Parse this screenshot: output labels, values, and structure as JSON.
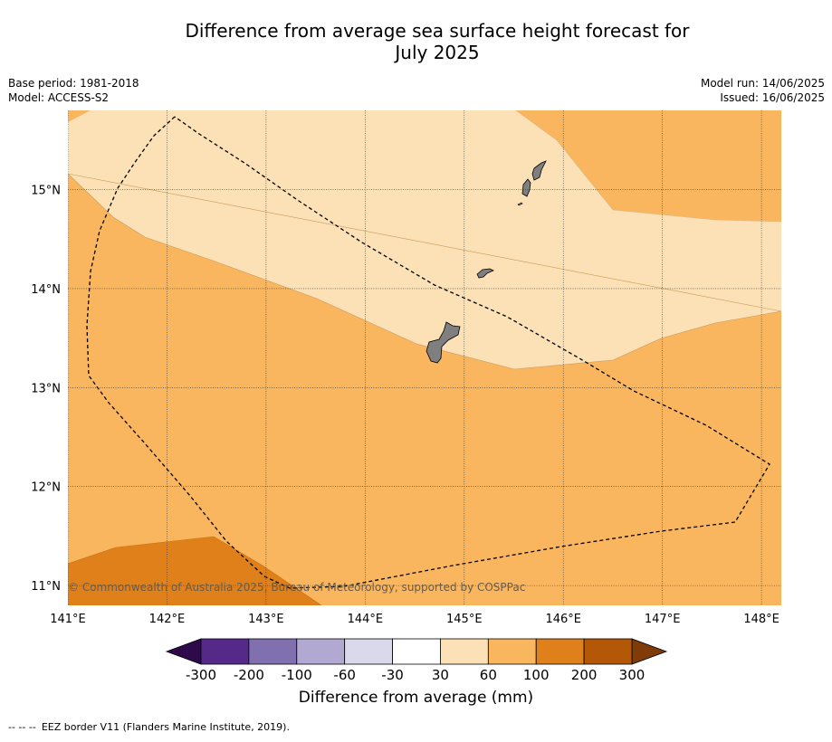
{
  "title_line1": "Difference from average sea surface height forecast for",
  "title_line2": "July 2025",
  "meta_left": {
    "base_period": "Base period: 1981-2018",
    "model": "Model: ACCESS-S2"
  },
  "meta_right": {
    "model_run": "Model run: 14/06/2025",
    "issued": "Issued: 16/06/2025"
  },
  "map": {
    "lon_labels": [
      "141°E",
      "142°E",
      "143°E",
      "144°E",
      "145°E",
      "146°E",
      "147°E",
      "148°E"
    ],
    "lat_labels": [
      "15°N",
      "14°N",
      "13°N",
      "12°N",
      "11°N"
    ],
    "lon_range": [
      141.0,
      148.2
    ],
    "lat_range": [
      10.8,
      15.8
    ],
    "copyright": "© Commonwealth of Australia 2025, Bureau of Meteorology, supported by COSPPac",
    "colors": {
      "c30_60": "#fce0b6",
      "c60_100": "#f9b65f",
      "c100_200": "#e0801a",
      "land": "#7f7f7f"
    }
  },
  "colorbar": {
    "ticks": [
      "-300",
      "-200",
      "-100",
      "-60",
      "-30",
      "30",
      "60",
      "100",
      "200",
      "300"
    ],
    "colors": [
      "#552989",
      "#8170b0",
      "#b1a9d2",
      "#d9d9eb",
      "#ffffff",
      "#fce0b6",
      "#f9b65f",
      "#e0801a",
      "#b25806"
    ],
    "under_color": "#2e0a4a",
    "over_color": "#7f3b08",
    "label": "Difference from average (mm)"
  },
  "footnote": {
    "dash": "-- -- --",
    "text": "EEZ border V11 (Flanders Marine Institute, 2019)."
  }
}
